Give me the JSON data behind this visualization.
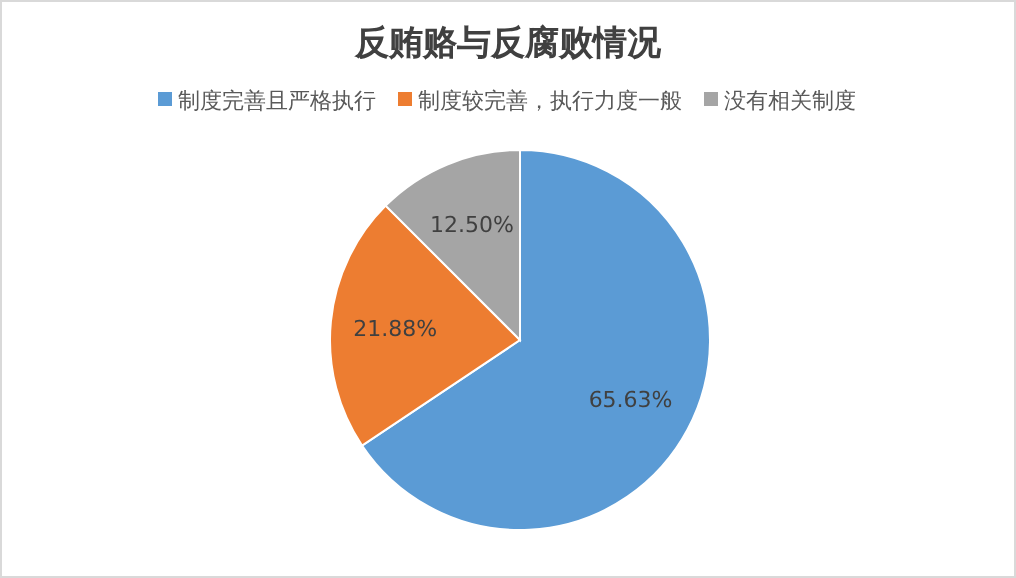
{
  "chart_data": {
    "type": "pie",
    "title": "反贿赂与反腐败情况",
    "legend": "top",
    "categories": [
      "制度完善且严格执行",
      "制度较完善，执行力度一般",
      "没有相关制度"
    ],
    "values": [
      65.63,
      21.88,
      12.5
    ],
    "colors": [
      "#5b9bd5",
      "#ed7d31",
      "#a5a5a5"
    ],
    "value_labels": [
      "65.63%",
      "21.88%",
      "12.50%"
    ]
  }
}
